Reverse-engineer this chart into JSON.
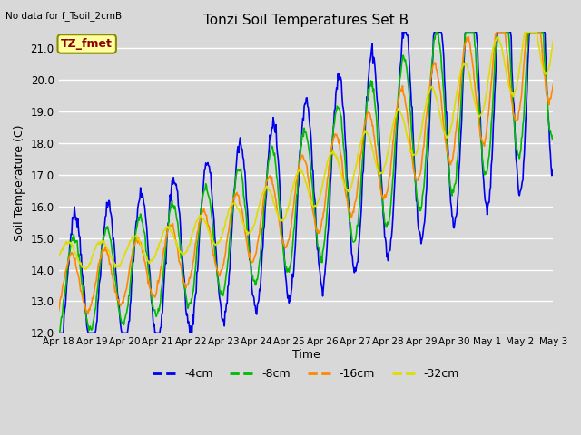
{
  "title": "Tonzi Soil Temperatures Set B",
  "xlabel": "Time",
  "ylabel": "Soil Temperature (C)",
  "top_left_text": "No data for f_Tsoil_2cmB",
  "annotation_text": "TZ_fmet",
  "annotation_color": "#8B0000",
  "annotation_bg": "#FFFFA0",
  "annotation_edge": "#8B8B00",
  "ylim": [
    12.0,
    21.5
  ],
  "yticks": [
    12.0,
    13.0,
    14.0,
    15.0,
    16.0,
    17.0,
    18.0,
    19.0,
    20.0,
    21.0
  ],
  "line_colors": {
    "-4cm": "#0000EE",
    "-8cm": "#00BB00",
    "-16cm": "#FF8800",
    "-32cm": "#DDDD00"
  },
  "bg_color": "#D8D8D8",
  "grid_color": "#FFFFFF",
  "xtick_labels": [
    "Apr 18",
    "Apr 19",
    "Apr 20",
    "Apr 21",
    "Apr 22",
    "Apr 23",
    "Apr 24",
    "Apr 25",
    "Apr 26",
    "Apr 27",
    "Apr 28",
    "Apr 29",
    "Apr 30",
    "May 1",
    "May 2",
    "May 3"
  ],
  "n_days": 15,
  "points_per_day": 48
}
